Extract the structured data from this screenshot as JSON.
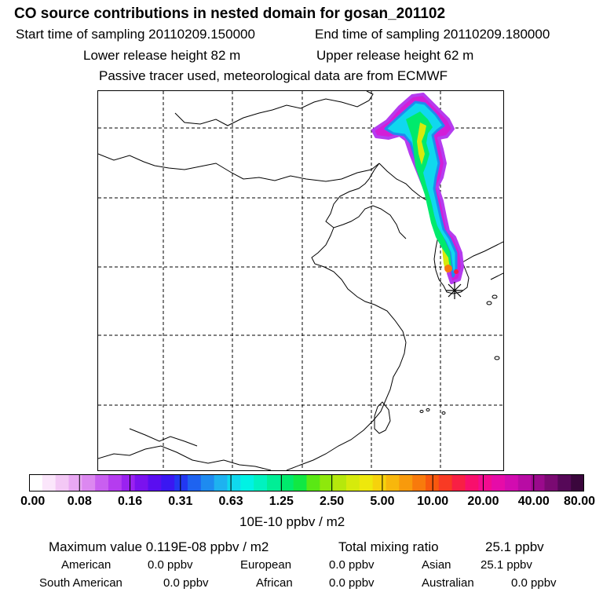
{
  "header": {
    "title": "CO  source contributions in nested domain for gosan_201102",
    "start_label": "Start time of sampling 20110209.150000",
    "end_label": "End time of sampling 20110209.180000",
    "lower_release": "Lower release height   82 m",
    "upper_release": "Upper release height   62 m",
    "note": "Passive tracer used, meteorological data are from ECMWF"
  },
  "colorbar": {
    "ticks": [
      "0.00",
      "0.08",
      "0.16",
      "0.31",
      "0.63",
      "1.25",
      "2.50",
      "5.00",
      "10.00",
      "20.00",
      "40.00",
      "80.00"
    ],
    "unit": "10E-10 ppbv / m2",
    "colors": [
      "#ffffff",
      "#fbe6fb",
      "#f3c8f5",
      "#e9a8f3",
      "#dc88f0",
      "#c95ff0",
      "#b53cef",
      "#9a22f0",
      "#7a12ee",
      "#5a0ef0",
      "#3a17f2",
      "#2238f2",
      "#1e63f0",
      "#1e8bf0",
      "#1eb2f0",
      "#10d8ee",
      "#00f2e4",
      "#00f2c0",
      "#00ee96",
      "#00ea6c",
      "#11e843",
      "#5ae814",
      "#8ee80c",
      "#b6e80c",
      "#d6ea0c",
      "#eee80c",
      "#f6d20c",
      "#f8b70c",
      "#f89a0c",
      "#f87a0c",
      "#f8580e",
      "#f83a24",
      "#f81f44",
      "#f80f6c",
      "#f20c90",
      "#e60ca8",
      "#d20cb0",
      "#b80ca4",
      "#9a0a8c",
      "#7a0a72",
      "#560858",
      "#3a063c"
    ]
  },
  "footer": {
    "max_label": "Maximum value  0.119E-08 ppbv / m2",
    "total_label": "Total mixing ratio",
    "total_value": "25.1 ppbv",
    "american_label": "American",
    "american_value": "0.0 ppbv",
    "european_label": "European",
    "european_value": "0.0 ppbv",
    "asian_label": "Asian",
    "asian_value": "25.1 ppbv",
    "south_american_label": "South American",
    "south_american_value": "0.0 ppbv",
    "african_label": "African",
    "african_value": "0.0 ppbv",
    "australian_label": "Australian",
    "australian_value": "0.0 ppbv"
  },
  "map": {
    "receptor_icon": "asterisk-icon",
    "plume_colors": [
      "#d21ed8",
      "#b53cef",
      "#1e8bf0",
      "#10d8ee",
      "#00ea6c",
      "#d6ea0c",
      "#f87a0c",
      "#f81f44"
    ]
  }
}
